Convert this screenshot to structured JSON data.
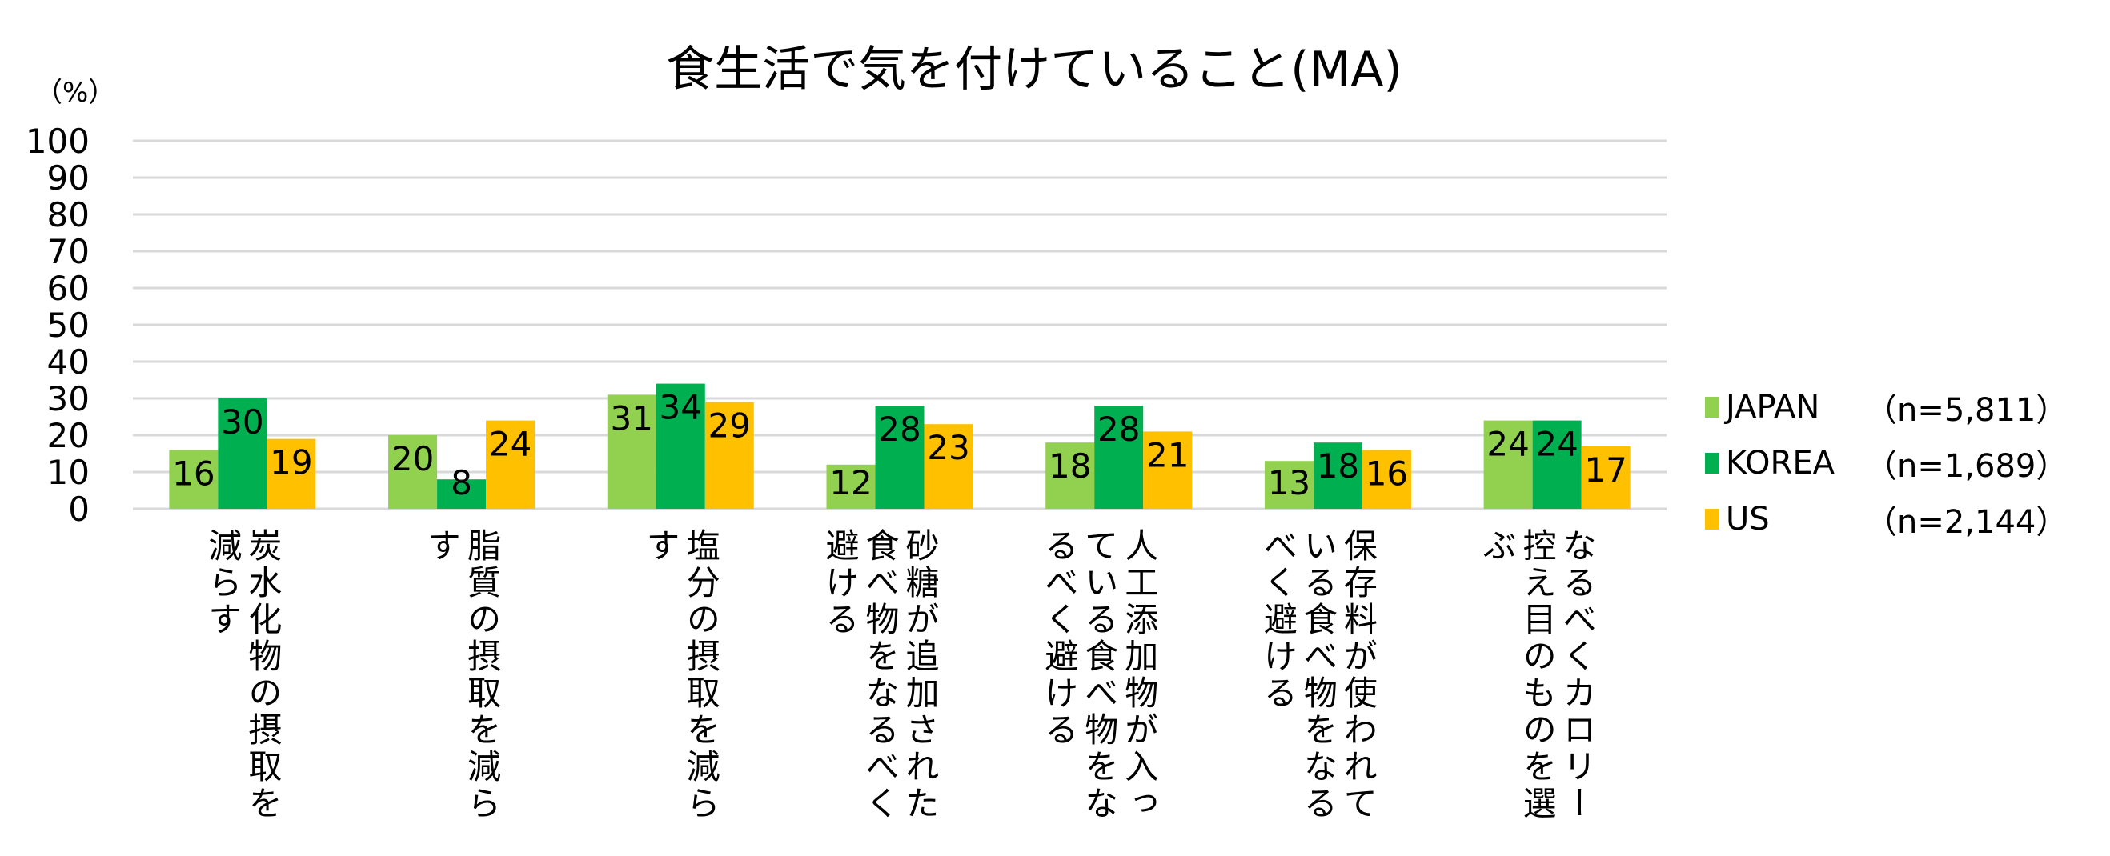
{
  "chart_data": {
    "type": "bar",
    "title": "食生活で気を付けていること(MA)",
    "ylabel": "（%）",
    "ylim": [
      0,
      100
    ],
    "yticks": [
      0,
      10,
      20,
      30,
      40,
      50,
      60,
      70,
      80,
      90,
      100
    ],
    "grid": true,
    "legend_position": "right",
    "categories": [
      "炭水化物の摂取を\n減らす",
      "脂質の摂取を減ら\nす",
      "塩分の摂取を減ら\nす",
      "砂糖が追加された\n食べ物をなるべく\n避ける",
      "人工添加物が入っ\nている食べ物をな\nるべく避ける",
      "保存料が使われて\nいる食べ物をなる\nべく避ける",
      "なるべくカロリー\n控え目のものを選\nぶ"
    ],
    "series": [
      {
        "name": "JAPAN",
        "n_label": "（n=5,811）",
        "color": "#92D050",
        "values": [
          16,
          20,
          31,
          12,
          18,
          13,
          24
        ]
      },
      {
        "name": "KOREA",
        "n_label": "（n=1,689）",
        "color": "#00B050",
        "values": [
          30,
          8,
          34,
          28,
          28,
          18,
          24
        ]
      },
      {
        "name": "US",
        "n_label": "（n=2,144）",
        "color": "#FFC000",
        "values": [
          19,
          24,
          29,
          23,
          21,
          16,
          17
        ]
      }
    ]
  }
}
